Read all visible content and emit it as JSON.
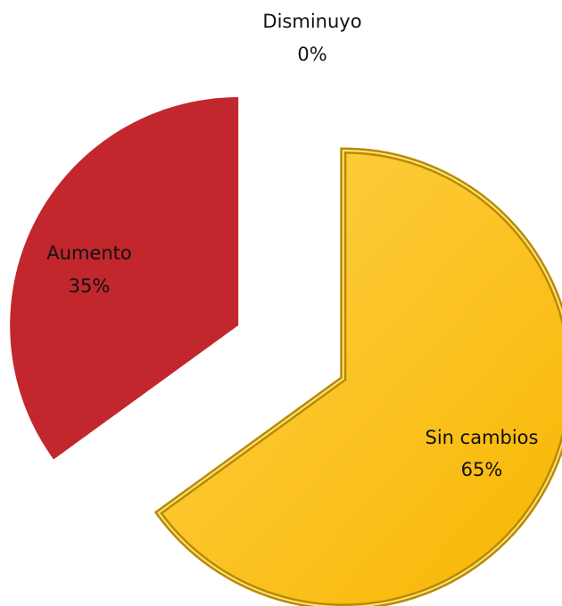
{
  "chart_data": {
    "type": "pie",
    "categories": [
      "Disminuyo",
      "Sin cambios",
      "Aumento"
    ],
    "values": [
      0,
      65,
      35
    ],
    "value_labels": [
      "0%",
      "65%",
      "35%"
    ],
    "colors": [
      "#4f81bd",
      "#ffc20e",
      "#c1272d"
    ]
  }
}
